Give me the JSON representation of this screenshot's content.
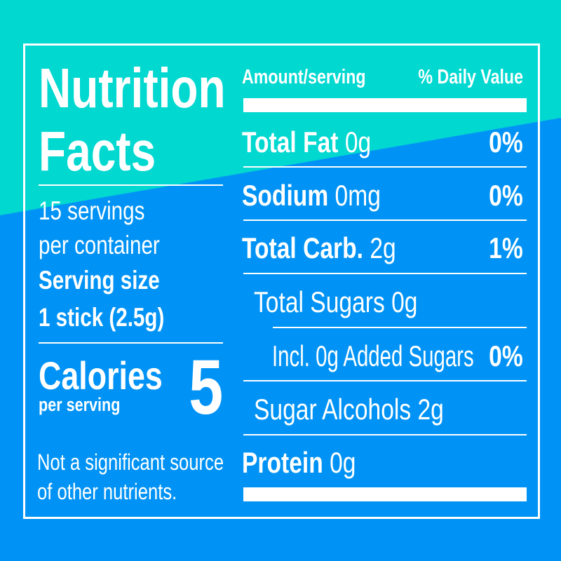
{
  "colors": {
    "teal": "#00d8d0",
    "blue": "#0093f5",
    "text": "#ffffff"
  },
  "title": {
    "line1": "Nutrition",
    "line2": "Facts"
  },
  "servings": {
    "line1": "15 servings",
    "line2": "per container",
    "size_label": "Serving size",
    "size_value": "1 stick (2.5g)"
  },
  "calories": {
    "label": "Calories",
    "sub": "per serving",
    "value": "5"
  },
  "footnote": {
    "line1": "Not a significant source",
    "line2": "of other nutrients."
  },
  "header": {
    "amount": "Amount/serving",
    "dv": "% Daily Value"
  },
  "nutrients": [
    {
      "name": "Total Fat",
      "amount": "0g",
      "dv": "0%"
    },
    {
      "name": "Sodium",
      "amount": "0mg",
      "dv": "0%"
    },
    {
      "name": "Total Carb.",
      "amount": "2g",
      "dv": "1%"
    },
    {
      "name": "Total Sugars 0g"
    },
    {
      "name": "Incl. 0g Added Sugars",
      "dv": "0%"
    },
    {
      "name": "Sugar Alcohols 2g"
    },
    {
      "name": "Protein",
      "amount": "0g"
    }
  ]
}
